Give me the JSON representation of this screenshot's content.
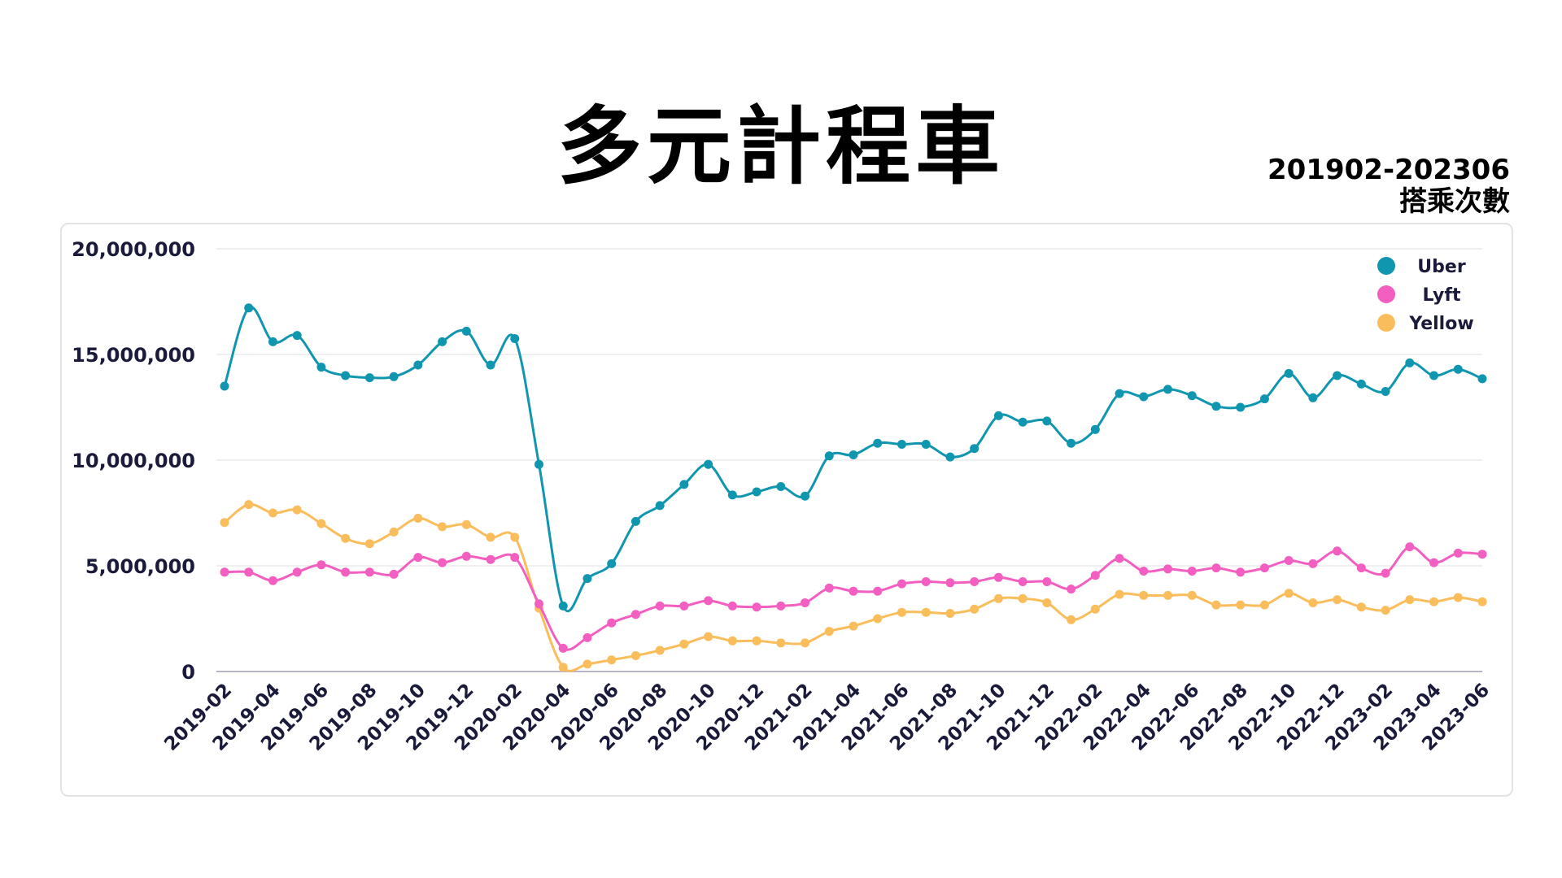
{
  "title": "多元計程車",
  "subtitle_line1": "201902-202306",
  "subtitle_line2": "搭乘次數",
  "chart_data": {
    "type": "line",
    "x": [
      "2019-02",
      "2019-03",
      "2019-04",
      "2019-05",
      "2019-06",
      "2019-07",
      "2019-08",
      "2019-09",
      "2019-10",
      "2019-11",
      "2019-12",
      "2020-01",
      "2020-02",
      "2020-03",
      "2020-04",
      "2020-05",
      "2020-06",
      "2020-07",
      "2020-08",
      "2020-09",
      "2020-10",
      "2020-11",
      "2020-12",
      "2021-01",
      "2021-02",
      "2021-03",
      "2021-04",
      "2021-05",
      "2021-06",
      "2021-07",
      "2021-08",
      "2021-09",
      "2021-10",
      "2021-11",
      "2021-12",
      "2022-01",
      "2022-02",
      "2022-03",
      "2022-04",
      "2022-05",
      "2022-06",
      "2022-07",
      "2022-08",
      "2022-09",
      "2022-10",
      "2022-11",
      "2022-12",
      "2023-01",
      "2023-02",
      "2023-03",
      "2023-04",
      "2023-05",
      "2023-06"
    ],
    "x_tick_labels": [
      "2019-02",
      "2019-04",
      "2019-06",
      "2019-08",
      "2019-10",
      "2019-12",
      "2020-02",
      "2020-04",
      "2020-06",
      "2020-08",
      "2020-10",
      "2020-12",
      "2021-02",
      "2021-04",
      "2021-06",
      "2021-08",
      "2021-10",
      "2021-12",
      "2022-02",
      "2022-04",
      "2022-06",
      "2022-08",
      "2022-10",
      "2022-12",
      "2023-02",
      "2023-04",
      "2023-06"
    ],
    "ylim": [
      0,
      20000000
    ],
    "y_ticks": [
      0,
      5000000,
      10000000,
      15000000,
      20000000
    ],
    "y_tick_labels": [
      "0",
      "5,000,000",
      "10,000,000",
      "15,000,000",
      "20,000,000"
    ],
    "grid": true,
    "legend_position": "top-right",
    "series": [
      {
        "name": "Uber",
        "color": "#1196b0",
        "values": [
          13500000,
          17200000,
          15600000,
          15900000,
          14400000,
          14000000,
          13900000,
          13950000,
          14500000,
          15600000,
          16100000,
          14500000,
          15750000,
          9800000,
          3100000,
          4400000,
          5100000,
          7100000,
          7850000,
          8850000,
          9800000,
          8350000,
          8500000,
          8750000,
          8300000,
          10200000,
          10250000,
          10800000,
          10750000,
          10750000,
          10150000,
          10550000,
          12100000,
          11800000,
          11850000,
          10800000,
          11450000,
          13150000,
          13000000,
          13350000,
          13050000,
          12550000,
          12500000,
          12900000,
          14100000,
          12950000,
          14000000,
          13600000,
          13250000,
          14600000,
          14000000,
          14300000,
          13850000
        ]
      },
      {
        "name": "Lyft",
        "color": "#f25fc0",
        "values": [
          4700000,
          4700000,
          4300000,
          4700000,
          5050000,
          4700000,
          4700000,
          4600000,
          5400000,
          5150000,
          5450000,
          5300000,
          5400000,
          3200000,
          1100000,
          1600000,
          2300000,
          2700000,
          3100000,
          3100000,
          3350000,
          3100000,
          3050000,
          3100000,
          3250000,
          3950000,
          3800000,
          3800000,
          4150000,
          4250000,
          4200000,
          4250000,
          4450000,
          4250000,
          4250000,
          3900000,
          4550000,
          5350000,
          4750000,
          4850000,
          4750000,
          4900000,
          4700000,
          4900000,
          5250000,
          5100000,
          5700000,
          4900000,
          4650000,
          5900000,
          5150000,
          5600000,
          5550000
        ]
      },
      {
        "name": "Yellow",
        "color": "#f9bd5c",
        "values": [
          7050000,
          7900000,
          7500000,
          7650000,
          7000000,
          6300000,
          6050000,
          6600000,
          7250000,
          6850000,
          6950000,
          6350000,
          6350000,
          3000000,
          200000,
          350000,
          550000,
          750000,
          1000000,
          1300000,
          1650000,
          1450000,
          1450000,
          1350000,
          1350000,
          1900000,
          2150000,
          2500000,
          2800000,
          2800000,
          2750000,
          2950000,
          3450000,
          3450000,
          3250000,
          2450000,
          2950000,
          3650000,
          3600000,
          3600000,
          3600000,
          3150000,
          3150000,
          3150000,
          3700000,
          3250000,
          3400000,
          3050000,
          2900000,
          3400000,
          3300000,
          3500000,
          3300000
        ]
      }
    ]
  }
}
